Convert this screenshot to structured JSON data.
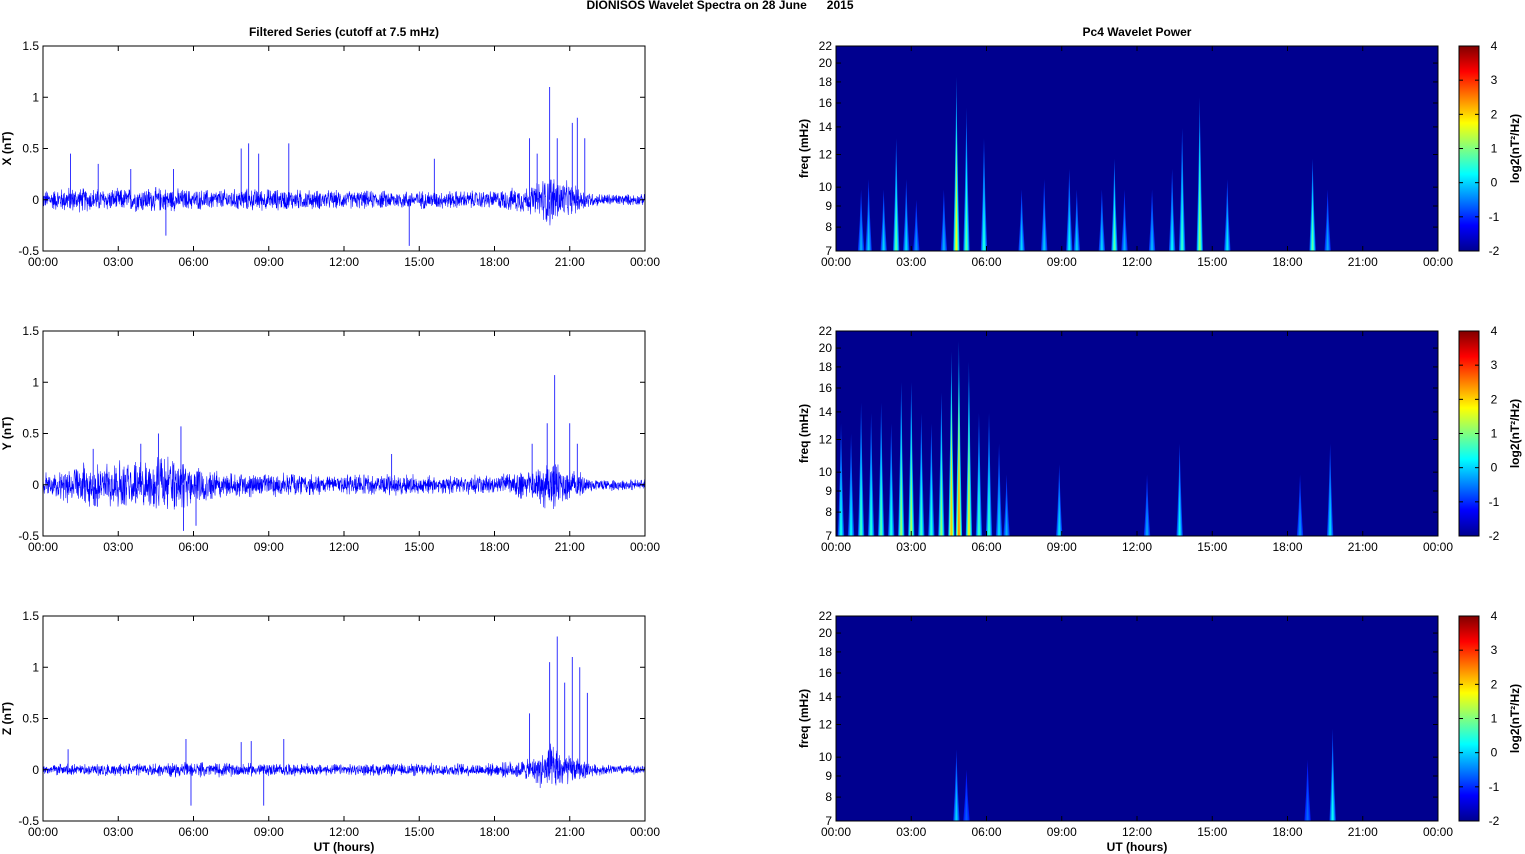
{
  "figure_title": "DIONISOS Wavelet Spectra on 28 June      2015",
  "colors": {
    "trace": "#0000ff",
    "background": "#ffffff",
    "axes": "#000000"
  },
  "chart_data": [
    {
      "type": "line",
      "title": "Filtered Series (cutoff at 7.5 mHz)",
      "ylabel": "X (nT)",
      "xlabel": "",
      "xlim": [
        0,
        24
      ],
      "ylim": [
        -0.5,
        1.5
      ],
      "x_tick_labels": [
        "00:00",
        "03:00",
        "06:00",
        "09:00",
        "12:00",
        "15:00",
        "18:00",
        "21:00",
        "00:00"
      ],
      "y_tick_labels": [
        "-0.5",
        "0",
        "0.5",
        "1",
        "1.5"
      ],
      "noise_amplitude": [
        [
          0,
          0.1
        ],
        [
          1,
          0.14
        ],
        [
          2,
          0.13
        ],
        [
          3,
          0.12
        ],
        [
          4,
          0.14
        ],
        [
          5,
          0.13
        ],
        [
          6,
          0.11
        ],
        [
          8,
          0.12
        ],
        [
          9,
          0.12
        ],
        [
          12,
          0.1
        ],
        [
          15,
          0.1
        ],
        [
          18,
          0.1
        ],
        [
          19.5,
          0.16
        ],
        [
          20.2,
          0.3
        ],
        [
          21,
          0.18
        ],
        [
          22,
          0.07
        ],
        [
          24,
          0.06
        ]
      ],
      "spikes": [
        [
          1.1,
          0.45
        ],
        [
          2.2,
          0.35
        ],
        [
          3.5,
          0.3
        ],
        [
          4.9,
          -0.35
        ],
        [
          5.2,
          0.3
        ],
        [
          7.9,
          0.5
        ],
        [
          8.2,
          0.55
        ],
        [
          8.6,
          0.45
        ],
        [
          9.8,
          0.55
        ],
        [
          14.6,
          -0.45
        ],
        [
          15.6,
          0.4
        ],
        [
          19.4,
          0.6
        ],
        [
          19.7,
          0.45
        ],
        [
          20.2,
          1.1
        ],
        [
          20.5,
          0.6
        ],
        [
          21.1,
          0.75
        ],
        [
          21.3,
          0.8
        ],
        [
          21.6,
          0.6
        ]
      ]
    },
    {
      "type": "line",
      "title": "",
      "ylabel": "Y (nT)",
      "xlabel": "",
      "xlim": [
        0,
        24
      ],
      "ylim": [
        -0.5,
        1.5
      ],
      "x_tick_labels": [
        "00:00",
        "03:00",
        "06:00",
        "09:00",
        "12:00",
        "15:00",
        "18:00",
        "21:00",
        "00:00"
      ],
      "y_tick_labels": [
        "-0.5",
        "0",
        "0.5",
        "1",
        "1.5"
      ],
      "noise_amplitude": [
        [
          0,
          0.12
        ],
        [
          1,
          0.2
        ],
        [
          2,
          0.24
        ],
        [
          3,
          0.26
        ],
        [
          4,
          0.28
        ],
        [
          5,
          0.3
        ],
        [
          6,
          0.24
        ],
        [
          7,
          0.16
        ],
        [
          9,
          0.13
        ],
        [
          12,
          0.1
        ],
        [
          14,
          0.13
        ],
        [
          15,
          0.1
        ],
        [
          18,
          0.1
        ],
        [
          19.5,
          0.17
        ],
        [
          20.2,
          0.3
        ],
        [
          21,
          0.18
        ],
        [
          22,
          0.07
        ],
        [
          24,
          0.06
        ]
      ],
      "spikes": [
        [
          2.0,
          0.35
        ],
        [
          3.9,
          0.4
        ],
        [
          4.6,
          0.5
        ],
        [
          5.5,
          0.57
        ],
        [
          5.6,
          -0.45
        ],
        [
          6.1,
          -0.4
        ],
        [
          13.9,
          0.3
        ],
        [
          19.5,
          0.4
        ],
        [
          20.1,
          0.6
        ],
        [
          20.4,
          1.07
        ],
        [
          21.0,
          0.6
        ],
        [
          21.3,
          0.4
        ]
      ]
    },
    {
      "type": "line",
      "title": "",
      "ylabel": "Z (nT)",
      "xlabel": "UT (hours)",
      "xlim": [
        0,
        24
      ],
      "ylim": [
        -0.5,
        1.5
      ],
      "x_tick_labels": [
        "00:00",
        "03:00",
        "06:00",
        "09:00",
        "12:00",
        "15:00",
        "18:00",
        "21:00",
        "00:00"
      ],
      "y_tick_labels": [
        "-0.5",
        "0",
        "0.5",
        "1",
        "1.5"
      ],
      "noise_amplitude": [
        [
          0,
          0.06
        ],
        [
          3,
          0.07
        ],
        [
          6,
          0.08
        ],
        [
          9,
          0.07
        ],
        [
          12,
          0.06
        ],
        [
          15,
          0.07
        ],
        [
          18,
          0.07
        ],
        [
          19.5,
          0.12
        ],
        [
          20.2,
          0.28
        ],
        [
          21,
          0.16
        ],
        [
          22,
          0.06
        ],
        [
          24,
          0.05
        ]
      ],
      "spikes": [
        [
          1.0,
          0.2
        ],
        [
          5.7,
          0.3
        ],
        [
          5.9,
          -0.35
        ],
        [
          7.9,
          0.27
        ],
        [
          8.3,
          0.28
        ],
        [
          8.8,
          -0.35
        ],
        [
          9.6,
          0.3
        ],
        [
          19.4,
          0.55
        ],
        [
          20.2,
          1.05
        ],
        [
          20.5,
          1.3
        ],
        [
          20.8,
          0.85
        ],
        [
          21.1,
          1.1
        ],
        [
          21.4,
          1.0
        ],
        [
          21.7,
          0.75
        ]
      ]
    },
    {
      "type": "heatmap",
      "title": "Pc4 Wavelet Power",
      "ylabel": "freq (mHz)",
      "xlabel": "",
      "xlim": [
        0,
        24
      ],
      "ylim": [
        7,
        22
      ],
      "y_scale": "log",
      "x_tick_labels": [
        "00:00",
        "03:00",
        "06:00",
        "09:00",
        "12:00",
        "15:00",
        "18:00",
        "21:00",
        "00:00"
      ],
      "y_tick_labels": [
        "7",
        "8",
        "9",
        "10",
        "12",
        "14",
        "16",
        "18",
        "20",
        "22"
      ],
      "y_ticks": [
        7,
        8,
        9,
        10,
        12,
        14,
        16,
        18,
        20,
        22
      ],
      "colorbar": {
        "label": "log2(nT²/Hz)",
        "range": [
          -2,
          4
        ],
        "ticks": [
          "-2",
          "-1",
          "0",
          "1",
          "2",
          "3",
          "4"
        ]
      },
      "background_value": -2,
      "events": [
        [
          1.0,
          0.3,
          -0.6
        ],
        [
          1.3,
          0.35,
          -0.4
        ],
        [
          1.9,
          0.3,
          -0.3
        ],
        [
          2.4,
          0.55,
          0.8
        ],
        [
          2.8,
          0.35,
          -0.2
        ],
        [
          3.2,
          0.25,
          -0.8
        ],
        [
          4.3,
          0.3,
          -0.6
        ],
        [
          4.8,
          0.85,
          2.0
        ],
        [
          5.2,
          0.7,
          0.8
        ],
        [
          5.9,
          0.55,
          0.3
        ],
        [
          7.4,
          0.3,
          -0.3
        ],
        [
          8.3,
          0.35,
          -0.4
        ],
        [
          9.3,
          0.4,
          0.0
        ],
        [
          9.6,
          0.3,
          -0.3
        ],
        [
          10.6,
          0.3,
          -0.3
        ],
        [
          11.1,
          0.45,
          0.8
        ],
        [
          11.5,
          0.3,
          -0.6
        ],
        [
          12.6,
          0.3,
          -0.5
        ],
        [
          13.4,
          0.4,
          0.0
        ],
        [
          13.8,
          0.6,
          0.5
        ],
        [
          14.5,
          0.75,
          1.2
        ],
        [
          15.6,
          0.35,
          -0.1
        ],
        [
          19.0,
          0.45,
          0.8
        ],
        [
          19.6,
          0.3,
          -0.7
        ]
      ]
    },
    {
      "type": "heatmap",
      "title": "",
      "ylabel": "freq (mHz)",
      "xlabel": "",
      "xlim": [
        0,
        24
      ],
      "ylim": [
        7,
        22
      ],
      "y_scale": "log",
      "x_tick_labels": [
        "00:00",
        "03:00",
        "06:00",
        "09:00",
        "12:00",
        "15:00",
        "18:00",
        "21:00",
        "00:00"
      ],
      "y_tick_labels": [
        "7",
        "8",
        "9",
        "10",
        "12",
        "14",
        "16",
        "18",
        "20",
        "22"
      ],
      "y_ticks": [
        7,
        8,
        9,
        10,
        12,
        14,
        16,
        18,
        20,
        22
      ],
      "colorbar": {
        "label": "log2(nT²/Hz)",
        "range": [
          -2,
          4
        ],
        "ticks": [
          "-2",
          "-1",
          "0",
          "1",
          "2",
          "3",
          "4"
        ]
      },
      "background_value": -2,
      "events": [
        [
          0.2,
          0.55,
          0.2
        ],
        [
          0.6,
          0.5,
          0.0
        ],
        [
          1.0,
          0.65,
          0.6
        ],
        [
          1.4,
          0.6,
          0.4
        ],
        [
          1.8,
          0.65,
          0.8
        ],
        [
          2.2,
          0.55,
          0.3
        ],
        [
          2.6,
          0.75,
          1.3
        ],
        [
          3.0,
          0.75,
          1.5
        ],
        [
          3.4,
          0.6,
          0.6
        ],
        [
          3.8,
          0.55,
          0.4
        ],
        [
          4.2,
          0.7,
          1.2
        ],
        [
          4.6,
          0.9,
          2.5
        ],
        [
          4.9,
          0.95,
          3.1
        ],
        [
          5.3,
          0.85,
          2.1
        ],
        [
          5.7,
          0.6,
          0.6
        ],
        [
          6.1,
          0.6,
          0.5
        ],
        [
          6.5,
          0.45,
          -0.2
        ],
        [
          6.8,
          0.3,
          -0.6
        ],
        [
          8.9,
          0.35,
          -0.2
        ],
        [
          12.4,
          0.3,
          -0.7
        ],
        [
          13.7,
          0.45,
          0.0
        ],
        [
          18.5,
          0.3,
          -0.8
        ],
        [
          19.7,
          0.45,
          -0.2
        ]
      ]
    },
    {
      "type": "heatmap",
      "title": "",
      "ylabel": "freq (mHz)",
      "xlabel": "UT (hours)",
      "xlim": [
        0,
        24
      ],
      "ylim": [
        7,
        22
      ],
      "y_scale": "log",
      "x_tick_labels": [
        "00:00",
        "03:00",
        "06:00",
        "09:00",
        "12:00",
        "15:00",
        "18:00",
        "21:00",
        "00:00"
      ],
      "y_tick_labels": [
        "7",
        "8",
        "9",
        "10",
        "12",
        "14",
        "16",
        "18",
        "20",
        "22"
      ],
      "y_ticks": [
        7,
        8,
        9,
        10,
        12,
        14,
        16,
        18,
        20,
        22
      ],
      "colorbar": {
        "label": "log2(nT²/Hz)",
        "range": [
          -2,
          4
        ],
        "ticks": [
          "-2",
          "-1",
          "0",
          "1",
          "2",
          "3",
          "4"
        ]
      },
      "background_value": -2,
      "events": [
        [
          4.8,
          0.35,
          -0.3
        ],
        [
          5.2,
          0.25,
          -1.3
        ],
        [
          18.8,
          0.3,
          -1.2
        ],
        [
          19.8,
          0.45,
          0.1
        ]
      ]
    }
  ]
}
